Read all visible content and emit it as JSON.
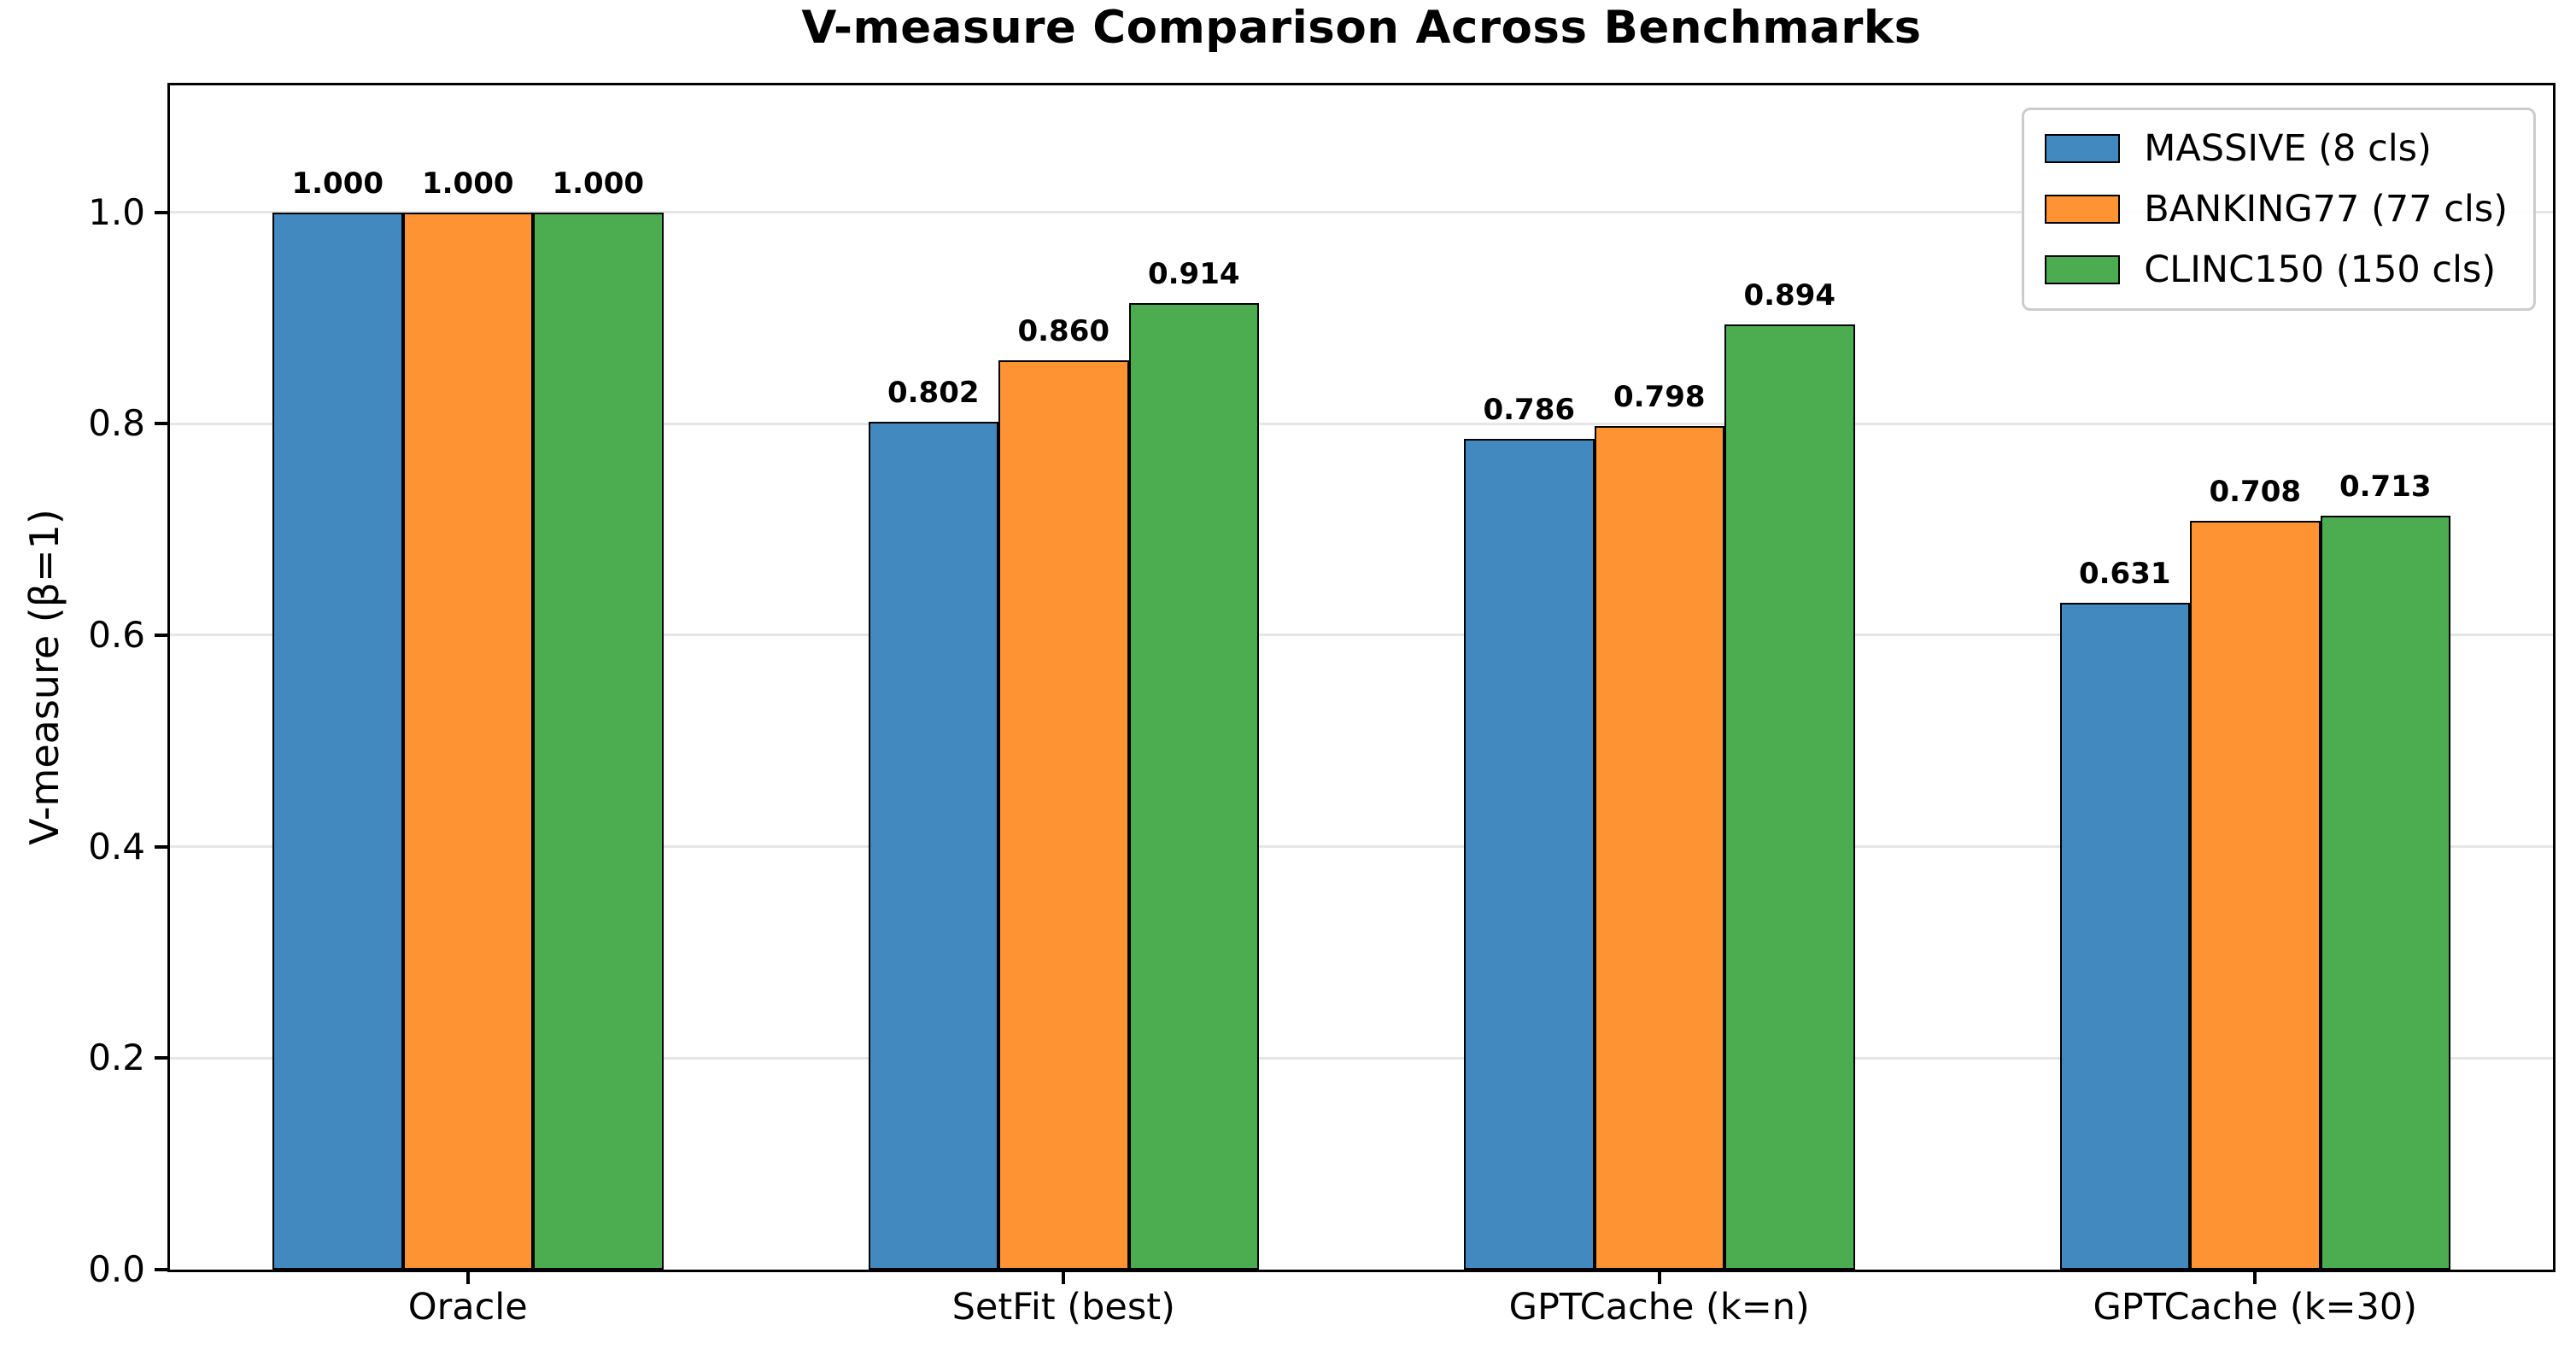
{
  "chart_data": {
    "type": "bar",
    "title": "V-measure Comparison Across Benchmarks",
    "ylabel": "V-measure (β=1)",
    "xlabel": "",
    "categories": [
      "Oracle",
      "SetFit (best)",
      "GPTCache (k=n)",
      "GPTCache (k=30)"
    ],
    "series": [
      {
        "name": "MASSIVE (8 cls)",
        "color": "#4289c0",
        "values": [
          1.0,
          0.802,
          0.786,
          0.631
        ]
      },
      {
        "name": "BANKING77 (77 cls)",
        "color": "#fd9332",
        "values": [
          1.0,
          0.86,
          0.798,
          0.708
        ]
      },
      {
        "name": "CLINC150 (150 cls)",
        "color": "#4cad50",
        "values": [
          1.0,
          0.914,
          0.894,
          0.713
        ]
      }
    ],
    "bar_value_labels": [
      [
        "1.000",
        "0.802",
        "0.786",
        "0.631"
      ],
      [
        "1.000",
        "0.860",
        "0.798",
        "0.708"
      ],
      [
        "1.000",
        "0.914",
        "0.894",
        "0.713"
      ]
    ],
    "yticks": [
      "0.0",
      "0.2",
      "0.4",
      "0.6",
      "0.8",
      "1.0"
    ],
    "ylim": [
      0,
      1.12
    ],
    "grid": true,
    "grid_color": "#e6e6e6",
    "bar_edge_color": "#000000",
    "legend_position": "upper right"
  }
}
